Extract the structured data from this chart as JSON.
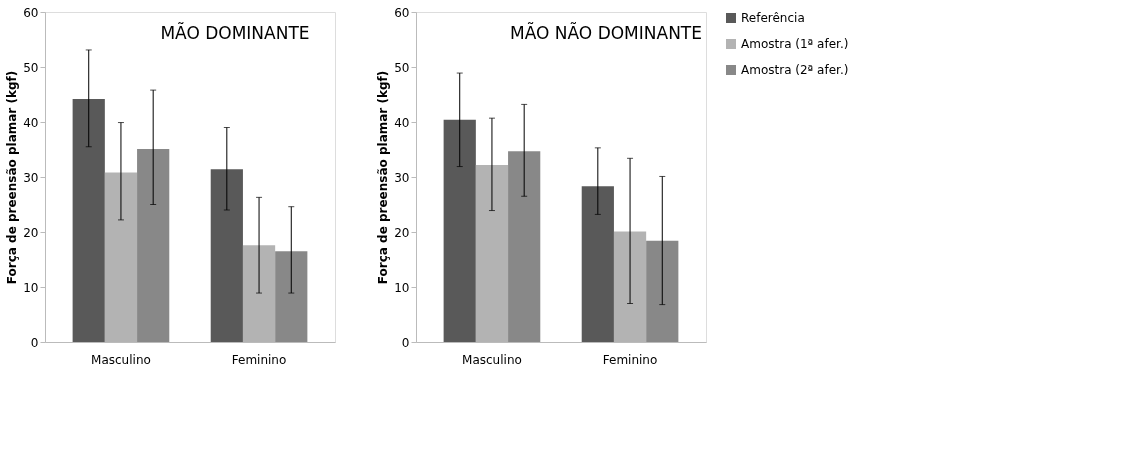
{
  "chart_data": [
    {
      "type": "bar",
      "title": "MÃO DOMINANTE",
      "ylabel": "Força de preensão plamar (kgf)",
      "categories": [
        "Masculino",
        "Feminino"
      ],
      "ylim": [
        0,
        60
      ],
      "yticks": [
        0,
        10,
        20,
        30,
        40,
        50,
        60
      ],
      "grid": false,
      "legend": "right",
      "series": [
        {
          "name": "Referência",
          "color": "#595959",
          "values": [
            44.2,
            31.4
          ],
          "errors": [
            [
              35.5,
              53.1
            ],
            [
              24.0,
              39.0
            ]
          ]
        },
        {
          "name": "Amostra (1ª afer.)",
          "color": "#b3b3b3",
          "values": [
            30.8,
            17.6
          ],
          "errors": [
            [
              22.2,
              39.9
            ],
            [
              8.9,
              26.3
            ]
          ]
        },
        {
          "name": "Amostra (2ª afer.)",
          "color": "#888888",
          "values": [
            35.1,
            16.5
          ],
          "errors": [
            [
              25.0,
              45.8
            ],
            [
              8.9,
              24.6
            ]
          ]
        }
      ]
    },
    {
      "type": "bar",
      "title": "MÃO NÃO DOMINANTE",
      "ylabel": "Força de preensão plamar (kgf)",
      "categories": [
        "Masculino",
        "Feminino"
      ],
      "ylim": [
        0,
        60
      ],
      "yticks": [
        0,
        10,
        20,
        30,
        40,
        50,
        60
      ],
      "grid": false,
      "legend": "right",
      "series": [
        {
          "name": "Referência",
          "color": "#595959",
          "values": [
            40.4,
            28.3
          ],
          "errors": [
            [
              31.9,
              48.9
            ],
            [
              23.2,
              35.3
            ]
          ]
        },
        {
          "name": "Amostra (1ª afer.)",
          "color": "#b3b3b3",
          "values": [
            32.2,
            20.1
          ],
          "errors": [
            [
              23.9,
              40.7
            ],
            [
              7.0,
              33.4
            ]
          ]
        },
        {
          "name": "Amostra (2ª afer.)",
          "color": "#888888",
          "values": [
            34.7,
            18.4
          ],
          "errors": [
            [
              26.5,
              43.2
            ],
            [
              6.8,
              30.1
            ]
          ]
        }
      ]
    }
  ]
}
